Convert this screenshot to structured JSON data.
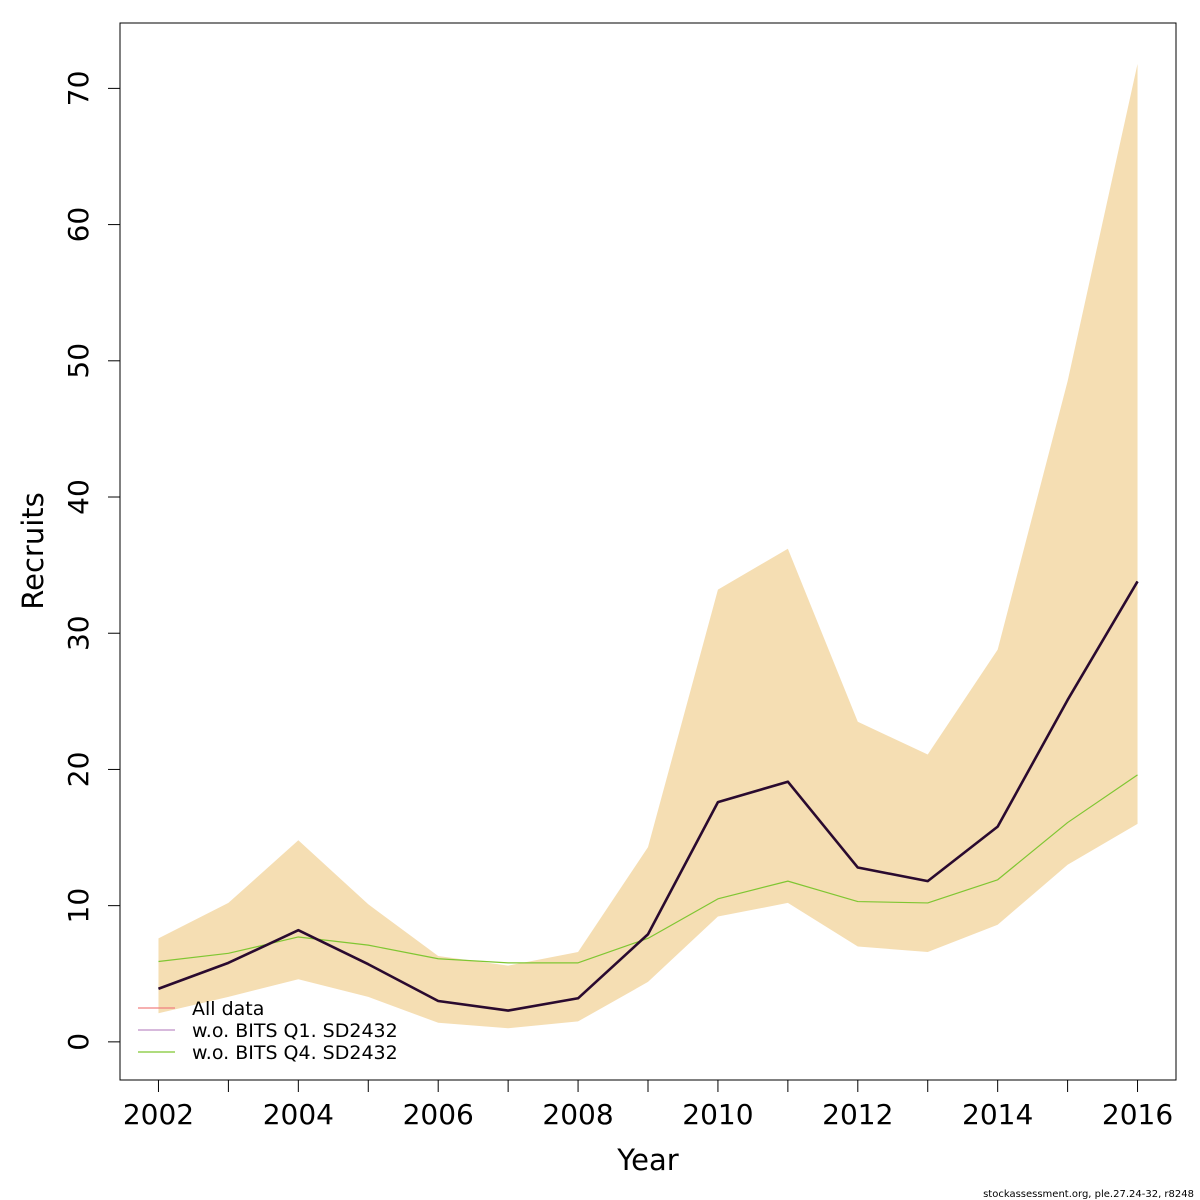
{
  "chart_data": {
    "type": "line",
    "xlabel": "Year",
    "ylabel": "Recruits",
    "xlim": [
      2001.45,
      2016.55
    ],
    "ylim": [
      -2.8,
      74.8
    ],
    "x_ticks": [
      2002,
      2004,
      2006,
      2008,
      2010,
      2012,
      2014,
      2016
    ],
    "y_ticks": [
      0,
      10,
      20,
      30,
      40,
      50,
      60,
      70
    ],
    "x": [
      2002,
      2003,
      2004,
      2005,
      2006,
      2007,
      2008,
      2009,
      2010,
      2011,
      2012,
      2013,
      2014,
      2015,
      2016
    ],
    "confidence_band": {
      "color": "#F5DEB3",
      "lower": [
        2.1,
        3.3,
        4.6,
        3.3,
        1.4,
        1.0,
        1.5,
        4.4,
        9.2,
        10.2,
        7.0,
        6.6,
        8.6,
        13.0,
        16.0
      ],
      "upper": [
        7.6,
        10.2,
        14.8,
        10.1,
        6.3,
        5.6,
        6.6,
        14.3,
        33.2,
        36.2,
        23.5,
        21.1,
        28.8,
        48.5,
        71.8
      ]
    },
    "series": [
      {
        "name": "All data",
        "color": "#2A0A2F",
        "values": [
          3.9,
          5.8,
          8.2,
          5.7,
          3.0,
          2.3,
          3.2,
          7.9,
          17.6,
          19.1,
          12.8,
          11.8,
          15.8,
          25.1,
          33.8
        ]
      },
      {
        "name": "w.o. BITS Q1. SD2432",
        "color": "#2A0A2F",
        "values": [
          3.9,
          5.8,
          8.2,
          5.7,
          3.0,
          2.3,
          3.2,
          7.9,
          17.6,
          19.1,
          12.8,
          11.8,
          15.8,
          25.1,
          33.8
        ]
      },
      {
        "name": "w.o. BITS Q4. SD2432",
        "color": "#7FC632",
        "values": [
          5.9,
          6.5,
          7.7,
          7.1,
          6.1,
          5.8,
          5.8,
          7.6,
          10.5,
          11.8,
          10.3,
          10.2,
          11.9,
          16.1,
          19.6
        ]
      }
    ],
    "legend": {
      "placement": "bottom-left",
      "items": [
        {
          "label": "All data",
          "color": "#F08080"
        },
        {
          "label": "w.o. BITS Q1. SD2432",
          "color": "#BF8FC8"
        },
        {
          "label": "w.o. BITS Q4. SD2432",
          "color": "#7FC632"
        }
      ]
    },
    "grid": false
  },
  "footer": "stockassessment.org, ple.27.24-32, r8248"
}
